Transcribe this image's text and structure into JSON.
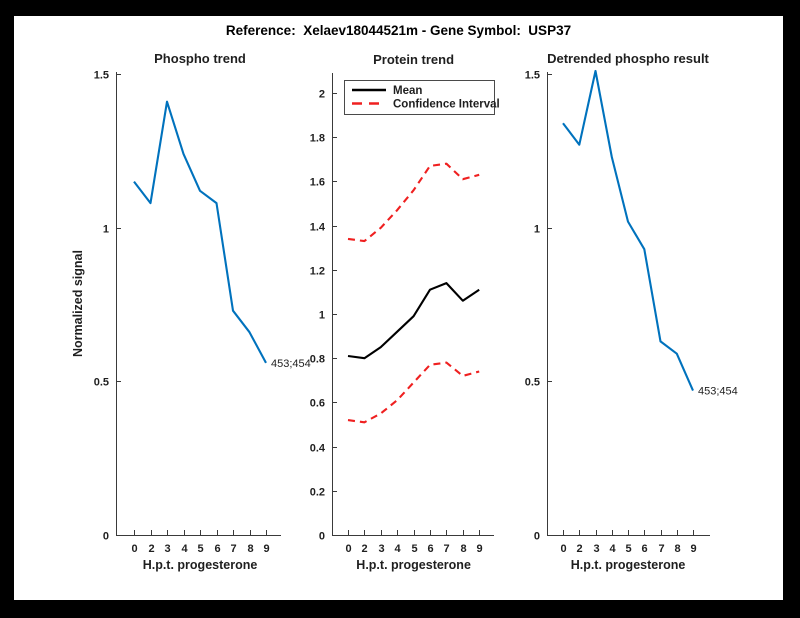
{
  "figure": {
    "title": "Reference:  Xelaev18044521m - Gene Symbol:  USP37",
    "background": "#ffffff",
    "frame_color": "#000000",
    "axis_color": "#3a3a3a",
    "text_color": "#1f1f1f"
  },
  "chart_data": [
    {
      "type": "line",
      "title": "Phospho trend",
      "xlabel": "H.p.t. progesterone",
      "ylabel": "Normalized signal",
      "x_ticklabels": [
        "0",
        "2",
        "3",
        "4",
        "5",
        "6",
        "7",
        "8",
        "9"
      ],
      "x_spacing": "even",
      "y_ticks": [
        0,
        0.5,
        1,
        1.5
      ],
      "ylim": [
        0,
        1.51
      ],
      "grid": false,
      "series": [
        {
          "name": "phospho-signal",
          "color": "#0072BD",
          "dash": false,
          "values": [
            1.15,
            1.08,
            1.41,
            1.24,
            1.12,
            1.08,
            0.73,
            0.66,
            0.56
          ]
        }
      ],
      "annotations": [
        {
          "text": "453;454",
          "position": "line-end"
        }
      ]
    },
    {
      "type": "line",
      "title": "Protein trend",
      "xlabel": "H.p.t. progesterone",
      "ylabel": "",
      "x_ticklabels": [
        "0",
        "2",
        "3",
        "4",
        "5",
        "6",
        "7",
        "8",
        "9"
      ],
      "x_spacing": "even",
      "y_ticks": [
        0,
        0.2,
        0.4,
        0.6,
        0.8,
        1,
        1.2,
        1.4,
        1.6,
        1.8,
        2
      ],
      "ylim": [
        0,
        2.09
      ],
      "grid": false,
      "legend": {
        "position": "northwest",
        "entries": [
          {
            "label": "Mean",
            "color": "#000000",
            "dash": false
          },
          {
            "label": "Confidence Interval",
            "color": "#ef2020",
            "dash": true
          }
        ]
      },
      "series": [
        {
          "name": "mean",
          "color": "#000000",
          "dash": false,
          "values": [
            0.81,
            0.8,
            0.85,
            0.92,
            0.99,
            1.11,
            1.14,
            1.06,
            1.11
          ]
        },
        {
          "name": "confidence-upper",
          "color": "#ef2020",
          "dash": true,
          "values": [
            1.34,
            1.33,
            1.39,
            1.47,
            1.56,
            1.67,
            1.68,
            1.61,
            1.63
          ]
        },
        {
          "name": "confidence-lower",
          "color": "#ef2020",
          "dash": true,
          "values": [
            0.52,
            0.51,
            0.55,
            0.61,
            0.69,
            0.77,
            0.78,
            0.72,
            0.74
          ]
        }
      ],
      "annotations": []
    },
    {
      "type": "line",
      "title": "Detrended phospho result",
      "xlabel": "H.p.t. progesterone",
      "ylabel": "",
      "x_ticklabels": [
        "0",
        "2",
        "3",
        "4",
        "5",
        "6",
        "7",
        "8",
        "9"
      ],
      "x_spacing": "even",
      "y_ticks": [
        0,
        0.5,
        1,
        1.5
      ],
      "ylim": [
        0,
        1.51
      ],
      "grid": false,
      "series": [
        {
          "name": "detrended-phospho",
          "color": "#0072BD",
          "dash": false,
          "values": [
            1.34,
            1.27,
            1.51,
            1.23,
            1.02,
            0.93,
            0.63,
            0.59,
            0.47
          ]
        }
      ],
      "annotations": [
        {
          "text": "453;454",
          "position": "line-end"
        }
      ]
    }
  ]
}
